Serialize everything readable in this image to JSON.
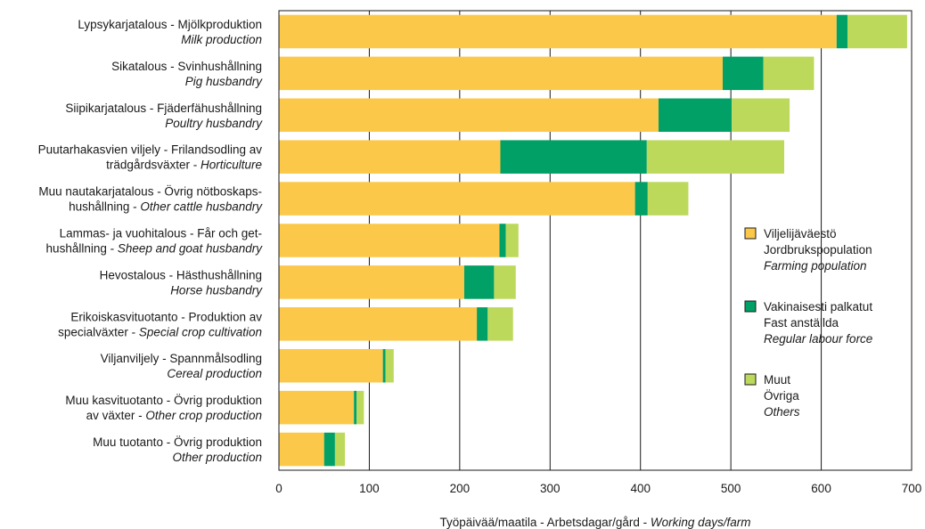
{
  "chart_data": {
    "type": "bar",
    "orientation": "horizontal",
    "stacked": true,
    "categories": [
      {
        "lines": [
          [
            {
              "t": "Lypsykarjatalous - Mjölkproduktion",
              "i": false
            }
          ],
          [
            {
              "t": "Milk production",
              "i": true
            }
          ]
        ]
      },
      {
        "lines": [
          [
            {
              "t": "Sikatalous -  Svinhushållning",
              "i": false
            }
          ],
          [
            {
              "t": "Pig husbandry",
              "i": true
            }
          ]
        ]
      },
      {
        "lines": [
          [
            {
              "t": "Siipikarjatalous - Fjäderfähushållning",
              "i": false
            }
          ],
          [
            {
              "t": "Poultry husbandry",
              "i": true
            }
          ]
        ]
      },
      {
        "lines": [
          [
            {
              "t": "Puutarhakasvien viljely - Frilandsodling av",
              "i": false
            }
          ],
          [
            {
              "t": "trädgårdsväxter - ",
              "i": false
            },
            {
              "t": "Horticulture",
              "i": true
            }
          ]
        ]
      },
      {
        "lines": [
          [
            {
              "t": "Muu nautakarjatalous - Övrig nötboskaps-",
              "i": false
            }
          ],
          [
            {
              "t": "hushållning - ",
              "i": false
            },
            {
              "t": "Other cattle husbandry",
              "i": true
            }
          ]
        ]
      },
      {
        "lines": [
          [
            {
              "t": "Lammas- ja vuohitalous - Får och get-",
              "i": false
            }
          ],
          [
            {
              "t": "hushållning - ",
              "i": false
            },
            {
              "t": "Sheep and goat husbandry",
              "i": true
            }
          ]
        ]
      },
      {
        "lines": [
          [
            {
              "t": "Hevostalous -  Hästhushållning",
              "i": false
            }
          ],
          [
            {
              "t": "Horse husbandry",
              "i": true
            }
          ]
        ]
      },
      {
        "lines": [
          [
            {
              "t": "Erikoiskasvituotanto - Produktion av",
              "i": false
            }
          ],
          [
            {
              "t": "specialväxter - ",
              "i": false
            },
            {
              "t": "Special crop cultivation",
              "i": true
            }
          ]
        ]
      },
      {
        "lines": [
          [
            {
              "t": "Viljanviljely - Spannmålsodling",
              "i": false
            }
          ],
          [
            {
              "t": "Cereal production",
              "i": true
            }
          ]
        ]
      },
      {
        "lines": [
          [
            {
              "t": "Muu kasvituotanto - Övrig produktion",
              "i": false
            }
          ],
          [
            {
              "t": "av växter - ",
              "i": false
            },
            {
              "t": "Other crop production",
              "i": true
            }
          ]
        ]
      },
      {
        "lines": [
          [
            {
              "t": "Muu tuotanto - Övrig produktion",
              "i": false
            }
          ],
          [
            {
              "t": "Other production",
              "i": true
            }
          ]
        ]
      }
    ],
    "series": [
      {
        "name_lines": [
          {
            "t": "Viljelijäväestö",
            "i": false
          },
          {
            "t": "Jordbrukspopulation",
            "i": false
          },
          {
            "t": "Farming population",
            "i": true
          }
        ],
        "color": "#FCC84A",
        "values": [
          617,
          491,
          420,
          245,
          394,
          244,
          205,
          219,
          115,
          83,
          50
        ]
      },
      {
        "name_lines": [
          {
            "t": "Vakinaisesti palkatut",
            "i": false
          },
          {
            "t": "Fast anställda",
            "i": false
          },
          {
            "t": "Regular labour force",
            "i": true
          }
        ],
        "color": "#00A066",
        "values": [
          12,
          45,
          81,
          162,
          14,
          7,
          33,
          12,
          3,
          3,
          12
        ]
      },
      {
        "name_lines": [
          {
            "t": "Muut",
            "i": false
          },
          {
            "t": "Övriga",
            "i": false
          },
          {
            "t": "Others",
            "i": true
          }
        ],
        "color": "#BCD95C",
        "values": [
          66,
          56,
          64,
          152,
          45,
          14,
          24,
          28,
          9,
          8,
          11
        ]
      }
    ],
    "x_ticks": [
      0,
      100,
      200,
      300,
      400,
      500,
      600,
      700
    ],
    "xlim": [
      0,
      700
    ],
    "xlabel": [
      {
        "t": "Työpäivää/maatila - Arbetsdagar/gård - ",
        "i": false
      },
      {
        "t": "Working days/farm",
        "i": true
      }
    ],
    "grid": "vertical",
    "legend_position": "right"
  }
}
